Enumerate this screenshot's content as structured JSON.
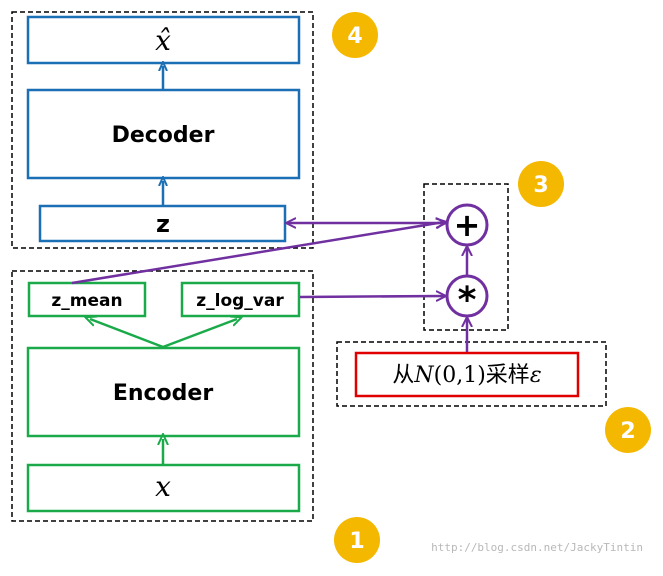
{
  "colors": {
    "decoder_blue": "#1a6fb5",
    "encoder_green": "#1aaa4a",
    "arrow_purple": "#7030a0",
    "sample_red": "#e00000",
    "badge_gold": "#f5b800",
    "dashed_border": "#000000"
  },
  "decoder": {
    "output_label": "x̂",
    "decoder_label": "Decoder",
    "z_label": "z",
    "badge": "4"
  },
  "operations": {
    "plus_symbol": "+",
    "times_symbol": "*",
    "badge": "3"
  },
  "sampler": {
    "label_prefix": "从",
    "label_dist": "N",
    "label_params": "(0,1)",
    "label_suffix": "采样",
    "label_eps": "ε",
    "badge": "2"
  },
  "encoder": {
    "z_mean_label": "z_mean",
    "z_log_var_label": "z_log_var",
    "encoder_label": "Encoder",
    "input_label": "x",
    "badge": "1"
  },
  "watermark": "http://blog.csdn.net/JackyTintin"
}
